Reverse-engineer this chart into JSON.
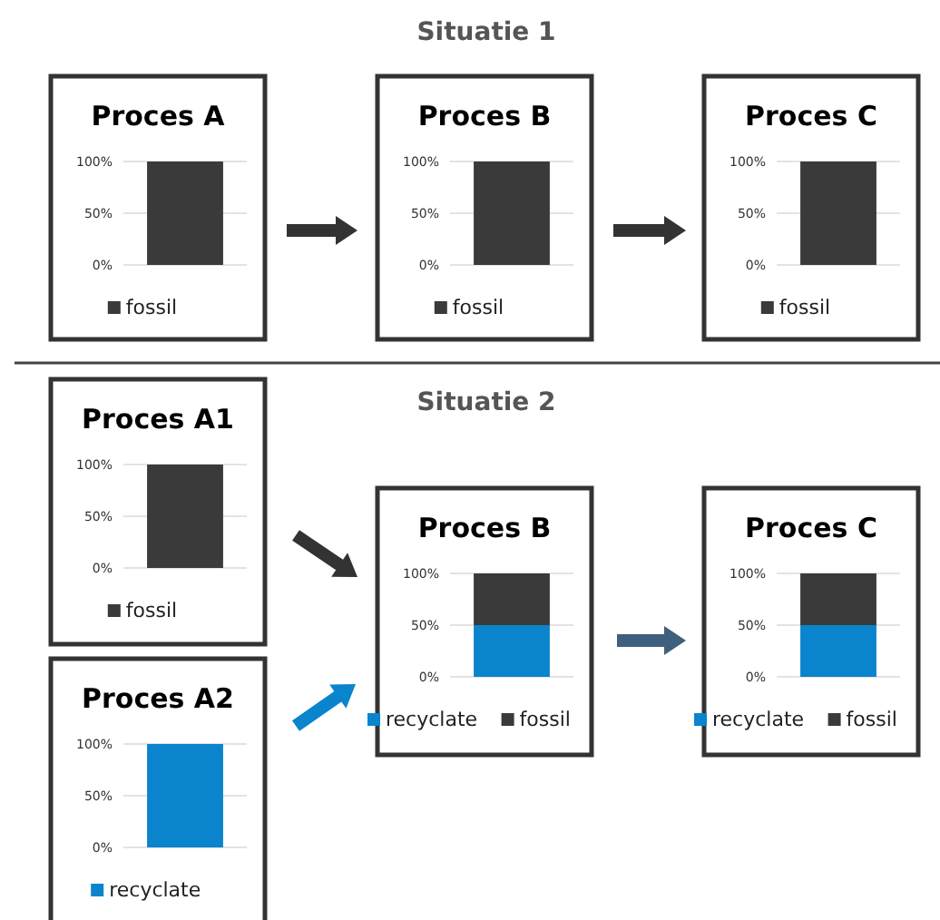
{
  "chart_data": [
    {
      "type": "bar",
      "title": "Proces A",
      "annotations": [
        "Situatie 1"
      ],
      "categories": [
        null
      ],
      "stacked": true,
      "ylim": [
        0,
        100
      ],
      "yticks": [
        {
          "value": 0,
          "label": "0%"
        },
        {
          "value": 50,
          "label": "50%"
        },
        {
          "value": 100,
          "label": "100%"
        }
      ],
      "grid": "y",
      "legend": "bottom",
      "series": [
        {
          "name": "fossil",
          "color": "#3a3a3a",
          "values": [
            100
          ]
        }
      ]
    },
    {
      "type": "bar",
      "title": "Proces B",
      "categories": [
        null
      ],
      "stacked": true,
      "ylim": [
        0,
        100
      ],
      "yticks": [
        {
          "value": 0,
          "label": "0%"
        },
        {
          "value": 50,
          "label": "50%"
        },
        {
          "value": 100,
          "label": "100%"
        }
      ],
      "grid": "y",
      "legend": "bottom",
      "series": [
        {
          "name": "fossil",
          "color": "#3a3a3a",
          "values": [
            100
          ]
        }
      ]
    },
    {
      "type": "bar",
      "title": "Proces C",
      "categories": [
        null
      ],
      "stacked": true,
      "ylim": [
        0,
        100
      ],
      "yticks": [
        {
          "value": 0,
          "label": "0%"
        },
        {
          "value": 50,
          "label": "50%"
        },
        {
          "value": 100,
          "label": "100%"
        }
      ],
      "grid": "y",
      "legend": "bottom",
      "series": [
        {
          "name": "fossil",
          "color": "#3a3a3a",
          "values": [
            100
          ]
        }
      ]
    },
    {
      "type": "bar",
      "title": "Proces A1",
      "annotations": [
        "Situatie 2"
      ],
      "categories": [
        null
      ],
      "stacked": true,
      "ylim": [
        0,
        100
      ],
      "yticks": [
        {
          "value": 0,
          "label": "0%"
        },
        {
          "value": 50,
          "label": "50%"
        },
        {
          "value": 100,
          "label": "100%"
        }
      ],
      "grid": "y",
      "legend": "bottom",
      "series": [
        {
          "name": "fossil",
          "color": "#3a3a3a",
          "values": [
            100
          ]
        }
      ]
    },
    {
      "type": "bar",
      "title": "Proces A2",
      "categories": [
        null
      ],
      "stacked": true,
      "ylim": [
        0,
        100
      ],
      "yticks": [
        {
          "value": 0,
          "label": "0%"
        },
        {
          "value": 50,
          "label": "50%"
        },
        {
          "value": 100,
          "label": "100%"
        }
      ],
      "grid": "y",
      "legend": "bottom",
      "series": [
        {
          "name": "recyclate",
          "color": "#0a84cc",
          "values": [
            100
          ]
        }
      ]
    },
    {
      "type": "bar",
      "title": "Proces B",
      "categories": [
        null
      ],
      "stacked": true,
      "ylim": [
        0,
        100
      ],
      "yticks": [
        {
          "value": 0,
          "label": "0%"
        },
        {
          "value": 50,
          "label": "50%"
        },
        {
          "value": 100,
          "label": "100%"
        }
      ],
      "grid": "y",
      "legend": "bottom",
      "series": [
        {
          "name": "recyclate",
          "color": "#0a84cc",
          "values": [
            50
          ]
        },
        {
          "name": "fossil",
          "color": "#3a3a3a",
          "values": [
            50
          ]
        }
      ]
    },
    {
      "type": "bar",
      "title": "Proces C",
      "categories": [
        null
      ],
      "stacked": true,
      "ylim": [
        0,
        100
      ],
      "yticks": [
        {
          "value": 0,
          "label": "0%"
        },
        {
          "value": 50,
          "label": "50%"
        },
        {
          "value": 100,
          "label": "100%"
        }
      ],
      "grid": "y",
      "legend": "bottom",
      "series": [
        {
          "name": "recyclate",
          "color": "#0a84cc",
          "values": [
            50
          ]
        },
        {
          "name": "fossil",
          "color": "#3a3a3a",
          "values": [
            50
          ]
        }
      ]
    }
  ]
}
